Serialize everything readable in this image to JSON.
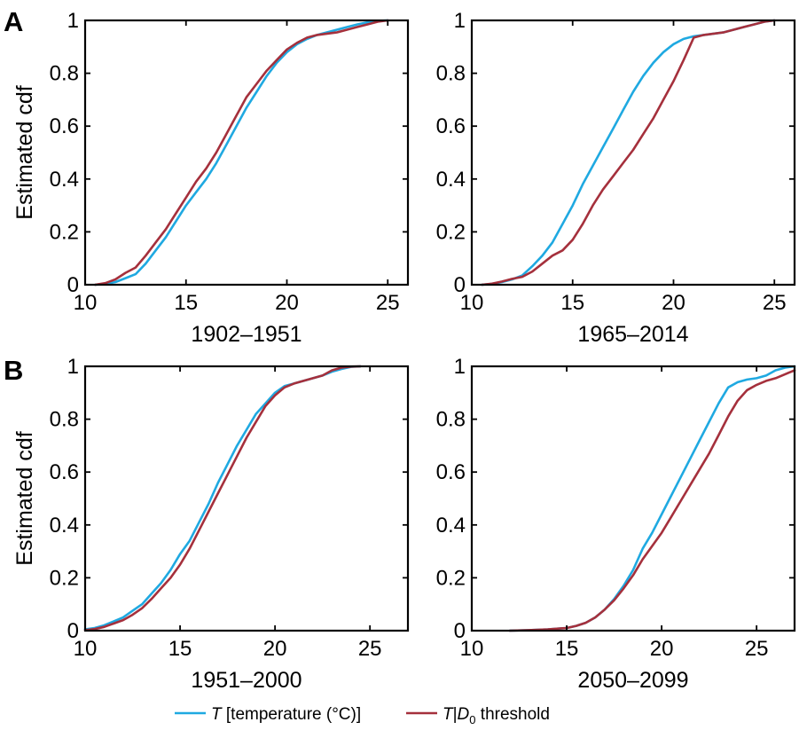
{
  "panels": {
    "a_label": "A",
    "b_label": "B"
  },
  "legend": {
    "t_symbol": "T",
    "t_rest": " [temperature (°C)]",
    "td_symbol": "T",
    "td_bar": "|",
    "td_sub_symbol": "D",
    "td_subscript": "0",
    "td_rest": "  threshold",
    "colors": {
      "temperature": "#1fa9e1",
      "conditional": "#a5303c"
    }
  },
  "chart_data": [
    {
      "type": "line",
      "panel": "A",
      "xlabel": "1902–1951",
      "ylabel": "Estimated cdf",
      "xlim": [
        10,
        26
      ],
      "ylim": [
        0,
        1
      ],
      "xticks": [
        10,
        15,
        20,
        25
      ],
      "yticks": [
        "0",
        "0.2",
        "0.4",
        "0.6",
        "0.8",
        "1"
      ],
      "series": [
        {
          "key": "temperature",
          "x": [
            10.5,
            11.0,
            11.5,
            12.0,
            12.5,
            13.0,
            13.5,
            14.0,
            14.5,
            15.0,
            15.5,
            16.0,
            16.5,
            17.0,
            17.5,
            18.0,
            18.5,
            19.0,
            19.5,
            20.0,
            20.5,
            21.0,
            21.5,
            22.0,
            22.5,
            23.0,
            23.5,
            24.0,
            24.5,
            25.0
          ],
          "y": [
            0.0,
            0.003,
            0.01,
            0.025,
            0.04,
            0.08,
            0.13,
            0.18,
            0.24,
            0.3,
            0.35,
            0.4,
            0.46,
            0.53,
            0.6,
            0.67,
            0.73,
            0.79,
            0.84,
            0.88,
            0.91,
            0.93,
            0.945,
            0.955,
            0.965,
            0.975,
            0.985,
            0.993,
            0.998,
            1.0
          ]
        },
        {
          "key": "conditional",
          "x": [
            10.5,
            11.0,
            11.5,
            12.0,
            12.5,
            13.0,
            13.5,
            14.0,
            14.5,
            15.0,
            15.5,
            16.0,
            16.5,
            17.0,
            17.5,
            18.0,
            18.5,
            19.0,
            19.5,
            20.0,
            20.5,
            21.0,
            21.5,
            22.0,
            22.5,
            23.0,
            23.5,
            24.0,
            24.5,
            25.0
          ],
          "y": [
            0.0,
            0.006,
            0.02,
            0.045,
            0.065,
            0.11,
            0.16,
            0.21,
            0.27,
            0.33,
            0.39,
            0.44,
            0.5,
            0.57,
            0.64,
            0.71,
            0.76,
            0.81,
            0.85,
            0.89,
            0.915,
            0.935,
            0.945,
            0.95,
            0.955,
            0.965,
            0.975,
            0.985,
            0.995,
            1.0
          ]
        }
      ]
    },
    {
      "type": "line",
      "panel": "A",
      "xlabel": "1965–2014",
      "ylabel": "",
      "xlim": [
        10,
        26
      ],
      "ylim": [
        0,
        1
      ],
      "xticks": [
        10,
        15,
        20,
        25
      ],
      "yticks": [
        "0",
        "0.2",
        "0.4",
        "0.6",
        "0.8",
        "1"
      ],
      "series": [
        {
          "key": "temperature",
          "x": [
            10.5,
            11.0,
            11.5,
            12.0,
            12.5,
            13.0,
            13.5,
            14.0,
            14.5,
            15.0,
            15.5,
            16.0,
            16.5,
            17.0,
            17.5,
            18.0,
            18.5,
            19.0,
            19.5,
            20.0,
            20.5,
            21.0,
            21.5,
            22.0,
            22.5,
            23.0,
            23.5,
            24.0,
            24.5,
            25.0
          ],
          "y": [
            0.0,
            0.003,
            0.01,
            0.02,
            0.035,
            0.07,
            0.11,
            0.16,
            0.23,
            0.3,
            0.38,
            0.45,
            0.52,
            0.59,
            0.66,
            0.73,
            0.79,
            0.84,
            0.88,
            0.91,
            0.93,
            0.94,
            0.945,
            0.95,
            0.955,
            0.965,
            0.975,
            0.985,
            0.995,
            1.0
          ]
        },
        {
          "key": "conditional",
          "x": [
            10.5,
            11.0,
            11.5,
            12.0,
            12.5,
            13.0,
            13.5,
            14.0,
            14.5,
            15.0,
            15.5,
            16.0,
            16.5,
            17.0,
            17.5,
            18.0,
            18.5,
            19.0,
            19.5,
            20.0,
            20.5,
            21.0,
            21.5,
            22.0,
            22.5,
            23.0,
            23.5,
            24.0,
            24.5,
            25.0
          ],
          "y": [
            0.0,
            0.004,
            0.012,
            0.022,
            0.03,
            0.05,
            0.08,
            0.11,
            0.13,
            0.17,
            0.23,
            0.3,
            0.36,
            0.41,
            0.46,
            0.51,
            0.57,
            0.63,
            0.7,
            0.77,
            0.85,
            0.935,
            0.945,
            0.95,
            0.955,
            0.965,
            0.975,
            0.985,
            0.995,
            1.0
          ]
        }
      ]
    },
    {
      "type": "line",
      "panel": "B",
      "xlabel": "1951–2000",
      "ylabel": "Estimated cdf",
      "xlim": [
        10,
        27
      ],
      "ylim": [
        0,
        1
      ],
      "xticks": [
        10,
        15,
        20,
        25
      ],
      "yticks": [
        "0",
        "0.2",
        "0.4",
        "0.6",
        "0.8",
        "1"
      ],
      "series": [
        {
          "key": "temperature",
          "x": [
            10.0,
            10.5,
            11.0,
            11.5,
            12.0,
            12.5,
            13.0,
            13.5,
            14.0,
            14.5,
            15.0,
            15.5,
            16.0,
            16.5,
            17.0,
            17.5,
            18.0,
            18.5,
            19.0,
            19.5,
            20.0,
            20.5,
            21.0,
            21.5,
            22.0,
            22.5,
            23.0,
            23.5,
            24.0,
            24.5
          ],
          "y": [
            0.005,
            0.01,
            0.02,
            0.035,
            0.05,
            0.075,
            0.1,
            0.14,
            0.18,
            0.23,
            0.29,
            0.34,
            0.41,
            0.48,
            0.56,
            0.63,
            0.7,
            0.76,
            0.82,
            0.86,
            0.9,
            0.925,
            0.935,
            0.945,
            0.955,
            0.965,
            0.98,
            0.99,
            0.998,
            1.0
          ]
        },
        {
          "key": "conditional",
          "x": [
            10.0,
            10.5,
            11.0,
            11.5,
            12.0,
            12.5,
            13.0,
            13.5,
            14.0,
            14.5,
            15.0,
            15.5,
            16.0,
            16.5,
            17.0,
            17.5,
            18.0,
            18.5,
            19.0,
            19.5,
            20.0,
            20.5,
            21.0,
            21.5,
            22.0,
            22.5,
            23.0,
            23.5,
            24.0,
            24.5
          ],
          "y": [
            0.002,
            0.006,
            0.014,
            0.027,
            0.04,
            0.06,
            0.085,
            0.12,
            0.16,
            0.2,
            0.25,
            0.31,
            0.38,
            0.45,
            0.52,
            0.59,
            0.66,
            0.73,
            0.79,
            0.85,
            0.89,
            0.92,
            0.935,
            0.945,
            0.955,
            0.965,
            0.985,
            0.995,
            0.999,
            1.0
          ]
        }
      ]
    },
    {
      "type": "line",
      "panel": "B",
      "xlabel": "2050–2099",
      "ylabel": "",
      "xlim": [
        10,
        27
      ],
      "ylim": [
        0,
        1
      ],
      "xticks": [
        10,
        15,
        20,
        25
      ],
      "yticks": [
        "0",
        "0.2",
        "0.4",
        "0.6",
        "0.8",
        "1"
      ],
      "series": [
        {
          "key": "temperature",
          "x": [
            12.0,
            13.0,
            14.0,
            15.0,
            15.5,
            16.0,
            16.5,
            17.0,
            17.5,
            18.0,
            18.5,
            19.0,
            19.5,
            20.0,
            20.5,
            21.0,
            21.5,
            22.0,
            22.5,
            23.0,
            23.5,
            24.0,
            24.5,
            25.0,
            25.5,
            26.0,
            26.5,
            27.0
          ],
          "y": [
            0.0,
            0.002,
            0.005,
            0.01,
            0.018,
            0.03,
            0.05,
            0.08,
            0.12,
            0.17,
            0.23,
            0.31,
            0.37,
            0.44,
            0.51,
            0.58,
            0.65,
            0.72,
            0.79,
            0.86,
            0.92,
            0.94,
            0.95,
            0.955,
            0.965,
            0.985,
            0.995,
            1.0
          ]
        },
        {
          "key": "conditional",
          "x": [
            12.0,
            13.0,
            14.0,
            15.0,
            15.5,
            16.0,
            16.5,
            17.0,
            17.5,
            18.0,
            18.5,
            19.0,
            19.5,
            20.0,
            20.5,
            21.0,
            21.5,
            22.0,
            22.5,
            23.0,
            23.5,
            24.0,
            24.5,
            25.0,
            25.5,
            26.0,
            26.5,
            27.0
          ],
          "y": [
            0.0,
            0.002,
            0.005,
            0.01,
            0.018,
            0.03,
            0.05,
            0.08,
            0.115,
            0.16,
            0.21,
            0.27,
            0.32,
            0.37,
            0.43,
            0.49,
            0.55,
            0.61,
            0.67,
            0.74,
            0.81,
            0.87,
            0.91,
            0.93,
            0.945,
            0.955,
            0.97,
            0.985
          ]
        }
      ]
    }
  ]
}
